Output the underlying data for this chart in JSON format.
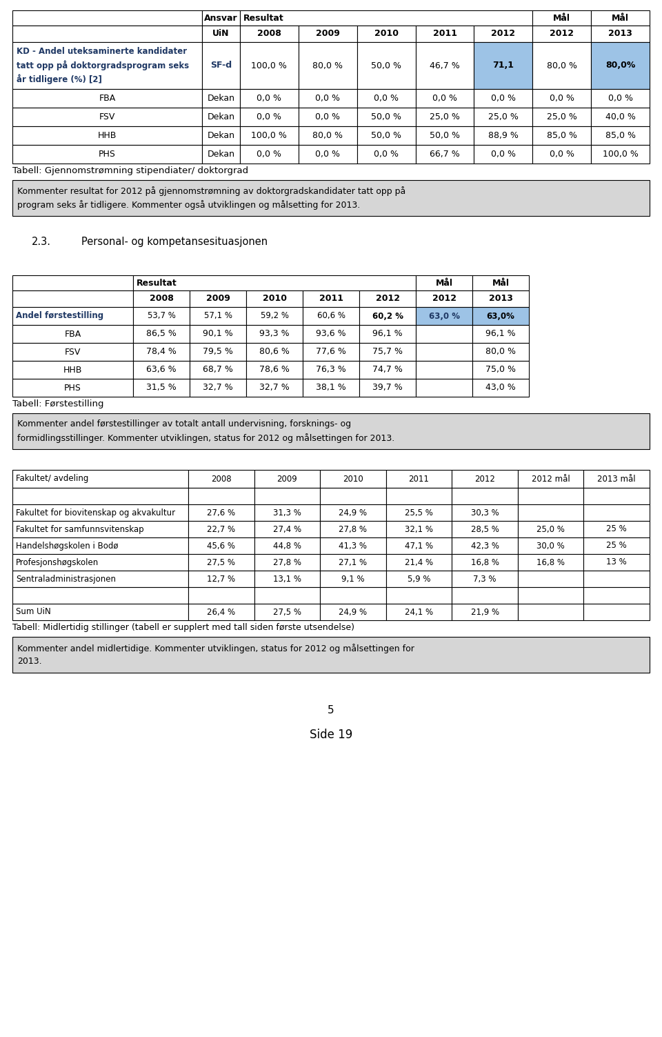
{
  "page_bg": "#ffffff",
  "blue_color": "#1f3864",
  "light_blue_bg": "#9dc3e6",
  "light_gray_bg": "#d6d6d6",
  "table1": {
    "title": "Tabell: Gjennomstrømning stipendiater/ doktorgrad",
    "kd_label": "KD - Andel uteksaminerte kandidater\ntatt opp på doktorgradsprogram seks\når tidligere (%) [2]",
    "kd_ansvar": "SF-d",
    "kd_values": [
      "100,0 %",
      "80,0 %",
      "50,0 %",
      "46,7 %",
      "71,1",
      "80,0 %",
      "80,0%"
    ],
    "sub_rows": [
      {
        "label": "FBA",
        "ansvar": "Dekan",
        "values": [
          "0,0 %",
          "0,0 %",
          "0,0 %",
          "0,0 %",
          "0,0 %",
          "0,0 %",
          "0,0 %"
        ]
      },
      {
        "label": "FSV",
        "ansvar": "Dekan",
        "values": [
          "0,0 %",
          "0,0 %",
          "50,0 %",
          "25,0 %",
          "25,0 %",
          "25,0 %",
          "40,0 %"
        ]
      },
      {
        "label": "HHB",
        "ansvar": "Dekan",
        "values": [
          "100,0 %",
          "80,0 %",
          "50,0 %",
          "50,0 %",
          "88,9 %",
          "85,0 %",
          "85,0 %"
        ]
      },
      {
        "label": "PHS",
        "ansvar": "Dekan",
        "values": [
          "0,0 %",
          "0,0 %",
          "0,0 %",
          "66,7 %",
          "0,0 %",
          "0,0 %",
          "100,0 %"
        ]
      }
    ]
  },
  "comment1": "Kommenter resultat for 2012 på gjennomstrømning av doktorgradskandidater tatt opp på\nprogram seks år tidligere. Kommenter også utviklingen og målsetting for 2013.",
  "section23": "2.3.",
  "section23_text": "Personal- og kompetansesituasjonen",
  "table2": {
    "title": "Tabell: Førstestilling",
    "main_row": {
      "label": "Andel førstestilling",
      "values": [
        "53,7 %",
        "57,1 %",
        "59,2 %",
        "60,6 %",
        "60,2 %",
        "63,0 %",
        "63,0%"
      ]
    },
    "sub_rows": [
      {
        "label": "FBA",
        "values": [
          "86,5 %",
          "90,1 %",
          "93,3 %",
          "93,6 %",
          "96,1 %",
          "",
          "96,1 %"
        ]
      },
      {
        "label": "FSV",
        "values": [
          "78,4 %",
          "79,5 %",
          "80,6 %",
          "77,6 %",
          "75,7 %",
          "",
          "80,0 %"
        ]
      },
      {
        "label": "HHB",
        "values": [
          "63,6 %",
          "68,7 %",
          "78,6 %",
          "76,3 %",
          "74,7 %",
          "",
          "75,0 %"
        ]
      },
      {
        "label": "PHS",
        "values": [
          "31,5 %",
          "32,7 %",
          "32,7 %",
          "38,1 %",
          "39,7 %",
          "",
          "43,0 %"
        ]
      }
    ]
  },
  "comment2": "Kommenter andel førstestillinger av totalt antall undervisning, forsknings- og\nformidlingsstillinger. Kommenter utviklingen, status for 2012 og målsettingen for 2013.",
  "table3": {
    "title": "Tabell: Midlertidig stillinger (tabell er supplert med tall siden første utsendelse)",
    "header": [
      "Fakultet/ avdeling",
      "2008",
      "2009",
      "2010",
      "2011",
      "2012",
      "2012 mål",
      "2013 mål"
    ],
    "rows": [
      {
        "label": "",
        "values": [
          "",
          "",
          "",
          "",
          "",
          "",
          ""
        ]
      },
      {
        "label": "Fakultet for biovitenskap og akvakultur",
        "values": [
          "27,6 %",
          "31,3 %",
          "24,9 %",
          "25,5 %",
          "30,3 %",
          "",
          ""
        ]
      },
      {
        "label": "Fakultet for samfunnsvitenskap",
        "values": [
          "22,7 %",
          "27,4 %",
          "27,8 %",
          "32,1 %",
          "28,5 %",
          "25,0 %",
          "25 %"
        ]
      },
      {
        "label": "Handelshøgskolen i Bodø",
        "values": [
          "45,6 %",
          "44,8 %",
          "41,3 %",
          "47,1 %",
          "42,3 %",
          "30,0 %",
          "25 %"
        ]
      },
      {
        "label": "Profesjonshøgskolen",
        "values": [
          "27,5 %",
          "27,8 %",
          "27,1 %",
          "21,4 %",
          "16,8 %",
          "16,8 %",
          "13 %"
        ]
      },
      {
        "label": "Sentraladministrasjonen",
        "values": [
          "12,7 %",
          "13,1 %",
          "9,1 %",
          "5,9 %",
          "7,3 %",
          "",
          ""
        ]
      },
      {
        "label": "",
        "values": [
          "",
          "",
          "",
          "",
          "",
          "",
          ""
        ]
      },
      {
        "label": "Sum UiN",
        "values": [
          "26,4 %",
          "27,5 %",
          "24,9 %",
          "24,1 %",
          "21,9 %",
          "",
          ""
        ]
      }
    ]
  },
  "comment3": "Kommenter andel midlertidige. Kommenter utviklingen, status for 2012 og målsettingen for\n2013.",
  "page_number": "5",
  "side_label": "Side 19"
}
